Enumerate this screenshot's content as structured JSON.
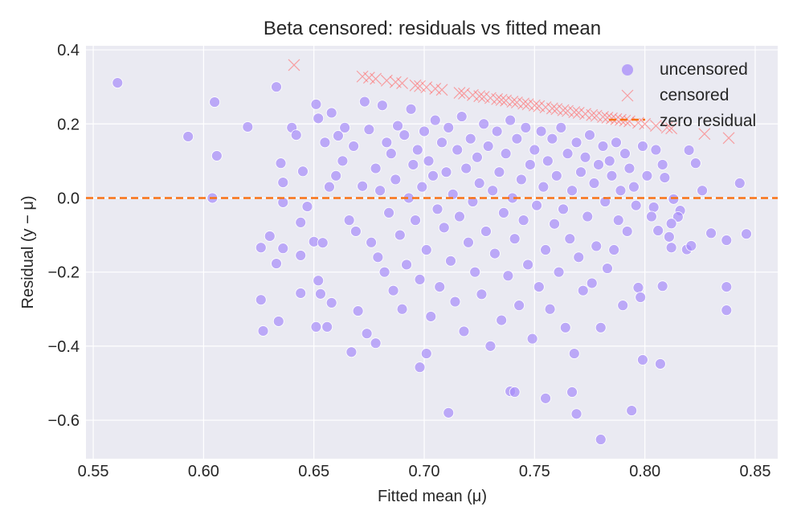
{
  "chart_data": {
    "type": "scatter",
    "title": "Beta censored: residuals vs fitted mean",
    "xlabel": "Fitted mean (μ)",
    "ylabel": "Residual (y − μ)",
    "xlim": [
      0.5467,
      0.8602
    ],
    "ylim": [
      -0.704,
      0.411
    ],
    "xticks": [
      0.55,
      0.6,
      0.65,
      0.7,
      0.75,
      0.8,
      0.85
    ],
    "xtick_labels": [
      "0.55",
      "0.60",
      "0.65",
      "0.70",
      "0.75",
      "0.80",
      "0.85"
    ],
    "yticks": [
      0.4,
      0.2,
      0.0,
      -0.2,
      -0.4,
      -0.6
    ],
    "ytick_labels": [
      "0.4",
      "0.2",
      "0.0",
      "−0.2",
      "−0.4",
      "−0.6"
    ],
    "grid": true,
    "legend_placement": "top-right",
    "colors": {
      "uncensored": "#a78bfa",
      "censored": "#ff6b6b",
      "zero_line": "#f97316",
      "plot_bg": "#eaeaf2",
      "grid": "#ffffff"
    },
    "reference_line": {
      "name": "zero residual",
      "y": 0,
      "style": "dashed"
    },
    "series": [
      {
        "name": "uncensored",
        "marker": "circle",
        "points": [
          [
            0.561,
            0.311
          ],
          [
            0.593,
            0.166
          ],
          [
            0.605,
            0.259
          ],
          [
            0.606,
            0.114
          ],
          [
            0.604,
            0.0
          ],
          [
            0.62,
            0.192
          ],
          [
            0.633,
            0.3
          ],
          [
            0.635,
            0.094
          ],
          [
            0.636,
            0.042
          ],
          [
            0.64,
            0.19
          ],
          [
            0.642,
            0.17
          ],
          [
            0.645,
            0.072
          ],
          [
            0.651,
            0.253
          ],
          [
            0.63,
            -0.103
          ],
          [
            0.626,
            -0.134
          ],
          [
            0.636,
            -0.136
          ],
          [
            0.633,
            -0.177
          ],
          [
            0.626,
            -0.275
          ],
          [
            0.627,
            -0.359
          ],
          [
            0.634,
            -0.333
          ],
          [
            0.644,
            -0.155
          ],
          [
            0.644,
            -0.257
          ],
          [
            0.652,
            -0.223
          ],
          [
            0.653,
            -0.259
          ],
          [
            0.658,
            -0.283
          ],
          [
            0.651,
            -0.348
          ],
          [
            0.656,
            -0.348
          ],
          [
            0.667,
            -0.416
          ],
          [
            0.65,
            -0.118
          ],
          [
            0.654,
            -0.121
          ],
          [
            0.636,
            -0.012
          ],
          [
            0.647,
            -0.023
          ],
          [
            0.644,
            -0.066
          ],
          [
            0.67,
            -0.305
          ],
          [
            0.674,
            -0.366
          ],
          [
            0.678,
            -0.392
          ],
          [
            0.711,
            -0.58
          ],
          [
            0.698,
            -0.457
          ],
          [
            0.701,
            -0.42
          ],
          [
            0.739,
            -0.522
          ],
          [
            0.755,
            -0.541
          ],
          [
            0.741,
            -0.524
          ],
          [
            0.767,
            -0.524
          ],
          [
            0.769,
            -0.583
          ],
          [
            0.78,
            -0.652
          ],
          [
            0.794,
            -0.574
          ],
          [
            0.799,
            -0.437
          ],
          [
            0.807,
            -0.448
          ],
          [
            0.808,
            -0.238
          ],
          [
            0.797,
            -0.242
          ],
          [
            0.798,
            -0.268
          ],
          [
            0.811,
            -0.105
          ],
          [
            0.812,
            -0.134
          ],
          [
            0.819,
            -0.139
          ],
          [
            0.821,
            -0.129
          ],
          [
            0.83,
            -0.095
          ],
          [
            0.837,
            -0.114
          ],
          [
            0.846,
            -0.097
          ],
          [
            0.837,
            -0.24
          ],
          [
            0.837,
            -0.303
          ],
          [
            0.843,
            0.04
          ],
          [
            0.826,
            0.02
          ],
          [
            0.823,
            0.094
          ],
          [
            0.82,
            0.129
          ],
          [
            0.808,
            0.09
          ],
          [
            0.809,
            0.055
          ],
          [
            0.813,
            -0.003
          ],
          [
            0.816,
            -0.034
          ],
          [
            0.815,
            -0.051
          ],
          [
            0.812,
            -0.069
          ],
          [
            0.806,
            -0.088
          ],
          [
            0.804,
            -0.025
          ],
          [
            0.652,
            0.215
          ],
          [
            0.655,
            0.15
          ],
          [
            0.658,
            0.23
          ],
          [
            0.661,
            0.168
          ],
          [
            0.663,
            0.1
          ],
          [
            0.66,
            0.06
          ],
          [
            0.657,
            0.03
          ],
          [
            0.664,
            0.19
          ],
          [
            0.668,
            0.14
          ],
          [
            0.666,
            -0.06
          ],
          [
            0.669,
            -0.09
          ],
          [
            0.672,
            0.032
          ],
          [
            0.673,
            0.26
          ],
          [
            0.675,
            0.185
          ],
          [
            0.676,
            -0.12
          ],
          [
            0.678,
            0.08
          ],
          [
            0.679,
            -0.16
          ],
          [
            0.68,
            0.02
          ],
          [
            0.681,
            0.25
          ],
          [
            0.682,
            -0.2
          ],
          [
            0.683,
            0.15
          ],
          [
            0.684,
            -0.04
          ],
          [
            0.685,
            0.12
          ],
          [
            0.686,
            -0.25
          ],
          [
            0.687,
            0.05
          ],
          [
            0.688,
            0.195
          ],
          [
            0.689,
            -0.1
          ],
          [
            0.69,
            -0.3
          ],
          [
            0.691,
            0.17
          ],
          [
            0.692,
            -0.18
          ],
          [
            0.693,
            0.0
          ],
          [
            0.694,
            0.24
          ],
          [
            0.695,
            0.09
          ],
          [
            0.696,
            -0.06
          ],
          [
            0.697,
            0.13
          ],
          [
            0.698,
            -0.22
          ],
          [
            0.699,
            0.03
          ],
          [
            0.7,
            0.18
          ],
          [
            0.701,
            -0.14
          ],
          [
            0.702,
            0.1
          ],
          [
            0.703,
            -0.32
          ],
          [
            0.704,
            0.06
          ],
          [
            0.705,
            0.21
          ],
          [
            0.706,
            -0.03
          ],
          [
            0.707,
            -0.24
          ],
          [
            0.708,
            0.15
          ],
          [
            0.709,
            -0.08
          ],
          [
            0.71,
            0.07
          ],
          [
            0.711,
            0.19
          ],
          [
            0.712,
            -0.17
          ],
          [
            0.713,
            0.01
          ],
          [
            0.714,
            -0.28
          ],
          [
            0.715,
            0.13
          ],
          [
            0.716,
            -0.05
          ],
          [
            0.717,
            0.22
          ],
          [
            0.718,
            -0.36
          ],
          [
            0.719,
            0.08
          ],
          [
            0.72,
            -0.12
          ],
          [
            0.721,
            0.16
          ],
          [
            0.722,
            -0.01
          ],
          [
            0.723,
            -0.2
          ],
          [
            0.724,
            0.11
          ],
          [
            0.725,
            0.04
          ],
          [
            0.726,
            -0.26
          ],
          [
            0.727,
            0.2
          ],
          [
            0.728,
            -0.09
          ],
          [
            0.729,
            0.14
          ],
          [
            0.73,
            -0.4
          ],
          [
            0.731,
            0.02
          ],
          [
            0.732,
            -0.15
          ],
          [
            0.733,
            0.18
          ],
          [
            0.734,
            0.07
          ],
          [
            0.735,
            -0.33
          ],
          [
            0.736,
            -0.04
          ],
          [
            0.737,
            0.12
          ],
          [
            0.738,
            -0.21
          ],
          [
            0.739,
            0.21
          ],
          [
            0.74,
            0.0
          ],
          [
            0.741,
            -0.11
          ],
          [
            0.742,
            0.16
          ],
          [
            0.743,
            -0.29
          ],
          [
            0.744,
            0.05
          ],
          [
            0.745,
            -0.06
          ],
          [
            0.746,
            0.19
          ],
          [
            0.747,
            -0.18
          ],
          [
            0.748,
            0.09
          ],
          [
            0.749,
            -0.38
          ],
          [
            0.75,
            0.13
          ],
          [
            0.751,
            -0.02
          ],
          [
            0.752,
            -0.24
          ],
          [
            0.753,
            0.18
          ],
          [
            0.754,
            0.03
          ],
          [
            0.755,
            -0.14
          ],
          [
            0.756,
            0.1
          ],
          [
            0.757,
            -0.3
          ],
          [
            0.758,
            0.16
          ],
          [
            0.759,
            -0.07
          ],
          [
            0.76,
            0.06
          ],
          [
            0.761,
            -0.2
          ],
          [
            0.762,
            0.19
          ],
          [
            0.763,
            -0.03
          ],
          [
            0.764,
            -0.35
          ],
          [
            0.765,
            0.12
          ],
          [
            0.766,
            -0.11
          ],
          [
            0.767,
            0.02
          ],
          [
            0.768,
            -0.42
          ],
          [
            0.769,
            0.15
          ],
          [
            0.77,
            -0.16
          ],
          [
            0.771,
            0.07
          ],
          [
            0.772,
            -0.25
          ],
          [
            0.773,
            0.11
          ],
          [
            0.774,
            -0.05
          ],
          [
            0.775,
            0.17
          ],
          [
            0.776,
            -0.23
          ],
          [
            0.777,
            0.04
          ],
          [
            0.778,
            -0.13
          ],
          [
            0.779,
            0.09
          ],
          [
            0.78,
            -0.35
          ],
          [
            0.781,
            0.14
          ],
          [
            0.782,
            -0.01
          ],
          [
            0.783,
            -0.19
          ],
          [
            0.784,
            0.1
          ],
          [
            0.785,
            0.06
          ],
          [
            0.786,
            -0.14
          ],
          [
            0.787,
            0.15
          ],
          [
            0.788,
            -0.06
          ],
          [
            0.789,
            0.02
          ],
          [
            0.79,
            -0.29
          ],
          [
            0.791,
            0.12
          ],
          [
            0.792,
            -0.09
          ],
          [
            0.793,
            0.08
          ],
          [
            0.795,
            0.03
          ],
          [
            0.796,
            -0.02
          ],
          [
            0.799,
            0.14
          ],
          [
            0.801,
            0.06
          ],
          [
            0.803,
            -0.05
          ],
          [
            0.805,
            0.13
          ]
        ]
      },
      {
        "name": "censored",
        "marker": "x",
        "points": [
          [
            0.641,
            0.359
          ],
          [
            0.672,
            0.328
          ],
          [
            0.675,
            0.325
          ],
          [
            0.678,
            0.322
          ],
          [
            0.683,
            0.317
          ],
          [
            0.687,
            0.313
          ],
          [
            0.69,
            0.31
          ],
          [
            0.696,
            0.304
          ],
          [
            0.698,
            0.302
          ],
          [
            0.701,
            0.299
          ],
          [
            0.705,
            0.295
          ],
          [
            0.708,
            0.292
          ],
          [
            0.716,
            0.284
          ],
          [
            0.718,
            0.282
          ],
          [
            0.722,
            0.278
          ],
          [
            0.725,
            0.275
          ],
          [
            0.727,
            0.273
          ],
          [
            0.73,
            0.27
          ],
          [
            0.733,
            0.267
          ],
          [
            0.735,
            0.265
          ],
          [
            0.737,
            0.263
          ],
          [
            0.74,
            0.26
          ],
          [
            0.742,
            0.258
          ],
          [
            0.745,
            0.255
          ],
          [
            0.747,
            0.253
          ],
          [
            0.75,
            0.25
          ],
          [
            0.752,
            0.248
          ],
          [
            0.755,
            0.245
          ],
          [
            0.758,
            0.242
          ],
          [
            0.76,
            0.24
          ],
          [
            0.763,
            0.237
          ],
          [
            0.765,
            0.235
          ],
          [
            0.768,
            0.232
          ],
          [
            0.77,
            0.23
          ],
          [
            0.773,
            0.227
          ],
          [
            0.776,
            0.224
          ],
          [
            0.778,
            0.222
          ],
          [
            0.781,
            0.219
          ],
          [
            0.783,
            0.217
          ],
          [
            0.785,
            0.215
          ],
          [
            0.787,
            0.213
          ],
          [
            0.789,
            0.211
          ],
          [
            0.791,
            0.209
          ],
          [
            0.793,
            0.207
          ],
          [
            0.797,
            0.203
          ],
          [
            0.8,
            0.2
          ],
          [
            0.805,
            0.195
          ],
          [
            0.81,
            0.19
          ],
          [
            0.812,
            0.188
          ],
          [
            0.827,
            0.173
          ],
          [
            0.838,
            0.162
          ]
        ]
      }
    ],
    "legend": [
      "uncensored",
      "censored",
      "zero residual"
    ]
  }
}
